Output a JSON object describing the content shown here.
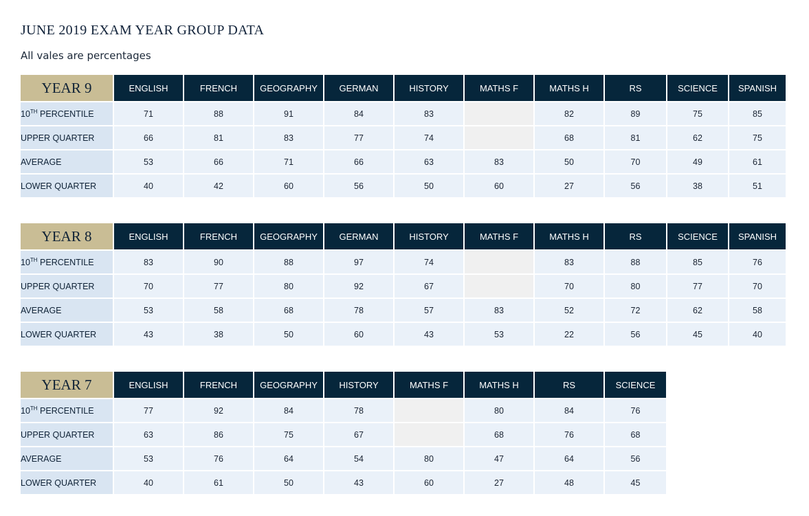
{
  "title": "JUNE 2019 EXAM YEAR GROUP DATA",
  "subtitle": "All vales are percentages",
  "colors": {
    "year_bg": "#c9bd95",
    "header_bg": "#06263b",
    "label_bg": "#d9e5f2",
    "cell_bg": "#eaf1f9",
    "empty_bg": "#f0f0f0"
  },
  "tables": [
    {
      "year": "YEAR 9",
      "subjects": [
        "ENGLISH",
        "FRENCH",
        "GEOGRAPHY",
        "GERMAN",
        "HISTORY",
        "MATHS F",
        "MATHS H",
        "RS",
        "SCIENCE",
        "SPANISH"
      ],
      "rows": [
        {
          "label_num": "10",
          "label_sup": "TH",
          "label_rest": " PERCENTILE",
          "values": [
            "71",
            "88",
            "91",
            "84",
            "83",
            "",
            "82",
            "89",
            "75",
            "85"
          ]
        },
        {
          "label": "UPPER QUARTER",
          "values": [
            "66",
            "81",
            "83",
            "77",
            "74",
            "",
            "68",
            "81",
            "62",
            "75"
          ]
        },
        {
          "label": "AVERAGE",
          "values": [
            "53",
            "66",
            "71",
            "66",
            "63",
            "83",
            "50",
            "70",
            "49",
            "61"
          ]
        },
        {
          "label": "LOWER QUARTER",
          "values": [
            "40",
            "42",
            "60",
            "56",
            "50",
            "60",
            "27",
            "56",
            "38",
            "51"
          ]
        }
      ]
    },
    {
      "year": "YEAR 8",
      "subjects": [
        "ENGLISH",
        "FRENCH",
        "GEOGRAPHY",
        "GERMAN",
        "HISTORY",
        "MATHS F",
        "MATHS H",
        "RS",
        "SCIENCE",
        "SPANISH"
      ],
      "rows": [
        {
          "label_num": "10",
          "label_sup": "TH",
          "label_rest": " PERCENTILE",
          "values": [
            "83",
            "90",
            "88",
            "97",
            "74",
            "",
            "83",
            "88",
            "85",
            "76"
          ]
        },
        {
          "label": "UPPER QUARTER",
          "values": [
            "70",
            "77",
            "80",
            "92",
            "67",
            "",
            "70",
            "80",
            "77",
            "70"
          ]
        },
        {
          "label": "AVERAGE",
          "values": [
            "53",
            "58",
            "68",
            "78",
            "57",
            "83",
            "52",
            "72",
            "62",
            "58"
          ]
        },
        {
          "label": "LOWER QUARTER",
          "values": [
            "43",
            "38",
            "50",
            "60",
            "43",
            "53",
            "22",
            "56",
            "45",
            "40"
          ]
        }
      ]
    },
    {
      "year": "YEAR 7",
      "subjects": [
        "ENGLISH",
        "FRENCH",
        "GEOGRAPHY",
        "HISTORY",
        "MATHS F",
        "MATHS H",
        "RS",
        "SCIENCE"
      ],
      "rows": [
        {
          "label_num": "10",
          "label_sup": "TH",
          "label_rest": " PERCENTILE",
          "values": [
            "77",
            "92",
            "84",
            "78",
            "",
            "80",
            "84",
            "76"
          ]
        },
        {
          "label": "UPPER QUARTER",
          "values": [
            "63",
            "86",
            "75",
            "67",
            "",
            "68",
            "76",
            "68"
          ]
        },
        {
          "label": "AVERAGE",
          "values": [
            "53",
            "76",
            "64",
            "54",
            "80",
            "47",
            "64",
            "56"
          ]
        },
        {
          "label": "LOWER QUARTER",
          "values": [
            "40",
            "61",
            "50",
            "43",
            "60",
            "27",
            "48",
            "45"
          ]
        }
      ]
    }
  ]
}
